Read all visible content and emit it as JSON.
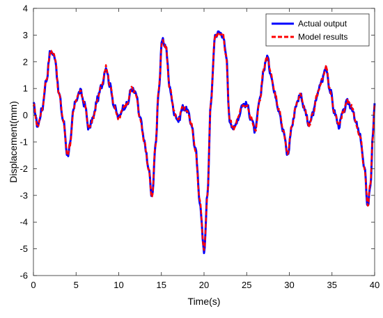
{
  "chart_data": {
    "type": "line",
    "title": "",
    "xlabel": "Time(s)",
    "ylabel": "Displacement(mm)",
    "xlim": [
      0,
      40
    ],
    "ylim": [
      -6,
      4
    ],
    "xticks": [
      0,
      5,
      10,
      15,
      20,
      25,
      30,
      35,
      40
    ],
    "yticks": [
      -6,
      -5,
      -4,
      -3,
      -2,
      -1,
      0,
      1,
      2,
      3,
      4
    ],
    "grid": false,
    "legend_position": "top-right",
    "series": [
      {
        "name": "Actual output",
        "color": "#0000ff",
        "style": "solid",
        "x": [
          0,
          0.5,
          1,
          1.5,
          2,
          2.5,
          3,
          3.5,
          4,
          4.3,
          4.7,
          5,
          5.5,
          6,
          6.5,
          7,
          7.5,
          8,
          8.5,
          9,
          9.5,
          10,
          10.5,
          11,
          11.5,
          12,
          12.5,
          13,
          13.5,
          13.9,
          14.3,
          14.7,
          15.1,
          15.5,
          16,
          16.5,
          17,
          17.5,
          18,
          18.5,
          19,
          19.5,
          20,
          20.4,
          20.8,
          21.3,
          21.8,
          22.2,
          22.6,
          23,
          23.5,
          24,
          24.5,
          25,
          25.5,
          26,
          26.5,
          27,
          27.4,
          27.8,
          28.3,
          28.8,
          29.3,
          29.8,
          30.3,
          30.8,
          31.3,
          31.8,
          32.3,
          32.8,
          33.3,
          33.8,
          34.3,
          34.8,
          35.3,
          35.8,
          36.3,
          36.8,
          37.3,
          37.8,
          38.3,
          38.8,
          39.2,
          39.5,
          39.8,
          40
        ],
        "y": [
          0.4,
          -0.4,
          0.2,
          1.3,
          2.4,
          2.2,
          0.8,
          -0.2,
          -1.5,
          -1.1,
          0.2,
          0.6,
          0.9,
          0.4,
          -0.5,
          -0.1,
          0.6,
          1.1,
          1.8,
          1.1,
          0.3,
          -0.1,
          0.3,
          0.4,
          1.0,
          0.8,
          -0.1,
          -1.0,
          -2.0,
          -3.1,
          -1.2,
          1.0,
          2.8,
          2.6,
          1.0,
          0.1,
          -0.2,
          0.3,
          0.2,
          -0.3,
          -1.3,
          -3.2,
          -5.1,
          -3.0,
          0.5,
          3.0,
          3.1,
          3.0,
          2.2,
          -0.2,
          -0.5,
          -0.1,
          0.4,
          0.4,
          -0.1,
          -0.6,
          0.5,
          1.7,
          2.2,
          1.6,
          0.8,
          0.2,
          -0.6,
          -1.5,
          -0.4,
          0.4,
          0.8,
          0.2,
          -0.4,
          0.1,
          0.8,
          1.3,
          1.8,
          0.9,
          0.1,
          -0.4,
          0.1,
          0.5,
          0.3,
          -0.3,
          -0.8,
          -2.0,
          -3.4,
          -2.6,
          -0.8,
          0.5
        ]
      },
      {
        "name": "Model results",
        "color": "#ff0000",
        "style": "dashed",
        "x": [
          0,
          0.5,
          1,
          1.5,
          2,
          2.5,
          3,
          3.5,
          4,
          4.3,
          4.7,
          5,
          5.5,
          6,
          6.5,
          7,
          7.5,
          8,
          8.5,
          9,
          9.5,
          10,
          10.5,
          11,
          11.5,
          12,
          12.5,
          13,
          13.5,
          13.9,
          14.3,
          14.7,
          15.1,
          15.5,
          16,
          16.5,
          17,
          17.5,
          18,
          18.5,
          19,
          19.5,
          20,
          20.4,
          20.8,
          21.3,
          21.8,
          22.2,
          22.6,
          23,
          23.5,
          24,
          24.5,
          25,
          25.5,
          26,
          26.5,
          27,
          27.4,
          27.8,
          28.3,
          28.8,
          29.3,
          29.8,
          30.3,
          30.8,
          31.3,
          31.8,
          32.3,
          32.8,
          33.3,
          33.8,
          34.3,
          34.8,
          35.3,
          35.8,
          36.3,
          36.8,
          37.3,
          37.8,
          38.3,
          38.8,
          39.2,
          39.5,
          39.8,
          40
        ],
        "y": [
          0.4,
          -0.4,
          0.2,
          1.3,
          2.4,
          2.2,
          0.8,
          -0.2,
          -1.5,
          -1.1,
          0.2,
          0.6,
          0.9,
          0.4,
          -0.5,
          -0.1,
          0.6,
          1.1,
          1.8,
          1.1,
          0.3,
          -0.1,
          0.3,
          0.4,
          1.0,
          0.8,
          -0.1,
          -1.0,
          -2.0,
          -3.1,
          -1.2,
          1.0,
          2.8,
          2.6,
          1.0,
          0.1,
          -0.2,
          0.3,
          0.2,
          -0.3,
          -1.3,
          -3.2,
          -5.1,
          -3.0,
          0.5,
          3.0,
          3.1,
          3.0,
          2.2,
          -0.2,
          -0.5,
          -0.1,
          0.4,
          0.4,
          -0.1,
          -0.6,
          0.5,
          1.7,
          2.2,
          1.6,
          0.8,
          0.2,
          -0.6,
          -1.5,
          -0.4,
          0.4,
          0.8,
          0.2,
          -0.4,
          0.1,
          0.8,
          1.3,
          1.8,
          0.9,
          0.1,
          -0.4,
          0.1,
          0.5,
          0.3,
          -0.3,
          -0.8,
          -2.0,
          -3.4,
          -2.6,
          -0.8,
          0.5
        ]
      }
    ]
  }
}
